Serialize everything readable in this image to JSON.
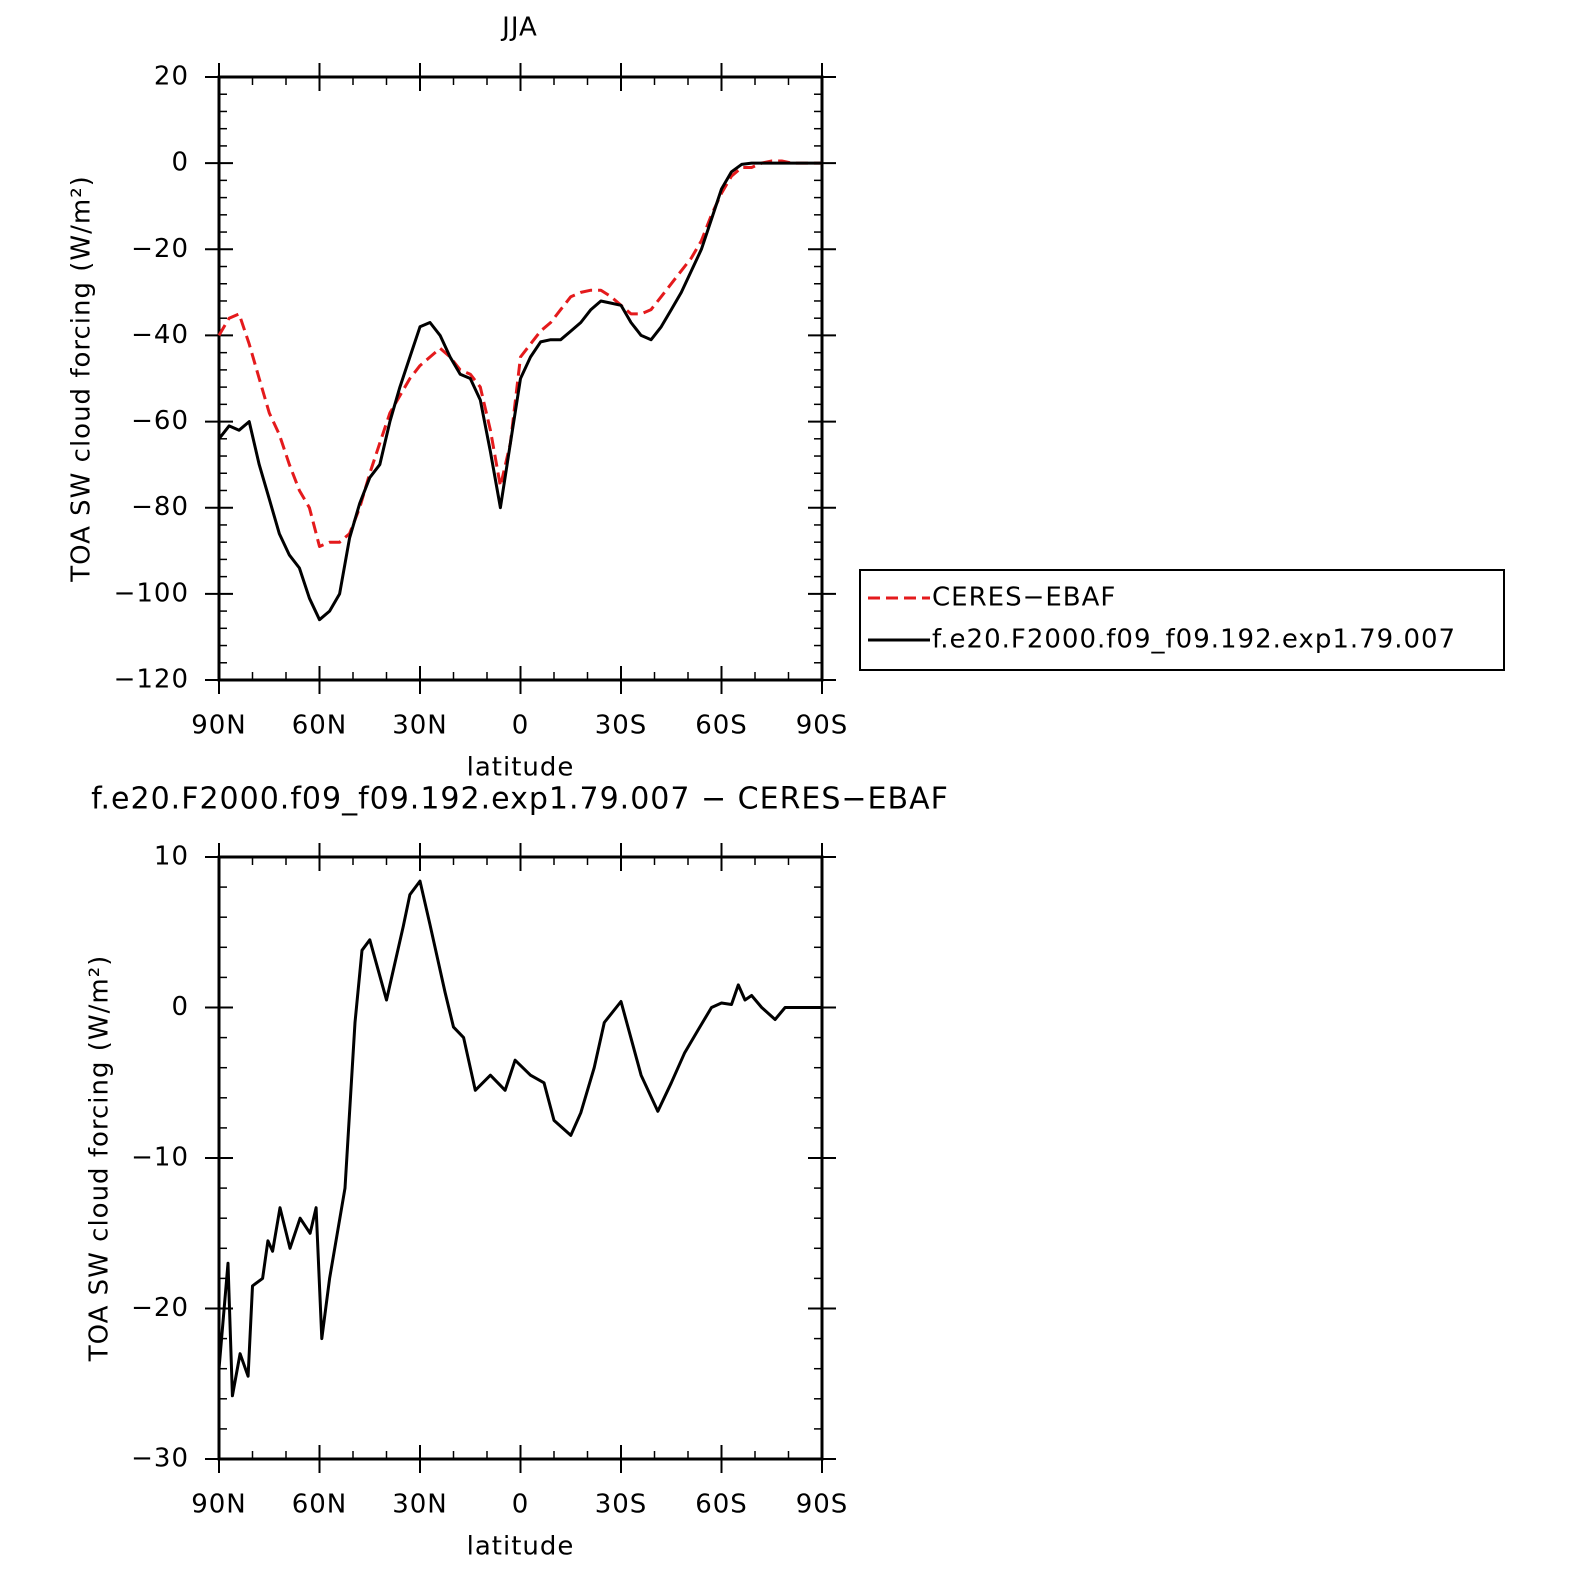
{
  "chart_data": [
    {
      "type": "line",
      "title": "JJA",
      "x_label": "latitude",
      "y_label": "TOA SW cloud forcing (W/m²)",
      "xlim": [
        90,
        -90
      ],
      "xticks": [
        {
          "value": 90,
          "label": "90N"
        },
        {
          "value": 60,
          "label": "60N"
        },
        {
          "value": 30,
          "label": "30N"
        },
        0,
        {
          "value": -30,
          "label": "30S"
        },
        {
          "value": -60,
          "label": "60S"
        },
        {
          "value": -90,
          "label": "90S"
        }
      ],
      "ylim": [
        -120,
        20
      ],
      "yticks": [
        {
          "value": -120,
          "label": "−120"
        },
        {
          "value": -100,
          "label": "−100"
        },
        {
          "value": -80,
          "label": "−80"
        },
        {
          "value": -60,
          "label": "−60"
        },
        {
          "value": -40,
          "label": "−40"
        },
        {
          "value": -20,
          "label": "−20"
        },
        0,
        20
      ],
      "legend": "right",
      "x": [
        90,
        87,
        84,
        81,
        78,
        75,
        72,
        69,
        66,
        63,
        60,
        57,
        54,
        51,
        48,
        45,
        42,
        39,
        36,
        33,
        30,
        27,
        24,
        21,
        18,
        15,
        12,
        9,
        6,
        3,
        0,
        -3,
        -6,
        -9,
        -12,
        -15,
        -18,
        -21,
        -24,
        -27,
        -30,
        -33,
        -36,
        -39,
        -42,
        -45,
        -48,
        -51,
        -54,
        -57,
        -60,
        -63,
        -66,
        -69,
        -72,
        -75,
        -78,
        -81,
        -84,
        -87,
        -90
      ],
      "series": [
        {
          "name": "CERES−EBAF",
          "color": "#e41a1c",
          "dash": true,
          "values": [
            -40,
            -36,
            -35,
            -42,
            -50,
            -58,
            -63,
            -70,
            -76,
            -80,
            -89,
            -88,
            -88,
            -86,
            -80,
            -72,
            -65,
            -58,
            -54,
            -50,
            -47,
            -45,
            -43,
            -45,
            -48,
            -49,
            -52,
            -62,
            -75,
            -65,
            -45,
            -42,
            -39,
            -37,
            -34,
            -31,
            -30,
            -29.5,
            -29.5,
            -31,
            -33,
            -35,
            -35,
            -34,
            -31,
            -28,
            -25,
            -22,
            -18,
            -12,
            -7,
            -3,
            -1,
            -1,
            0,
            0.5,
            0.5,
            0,
            0,
            0,
            0
          ]
        },
        {
          "name": "f.e20.F2000.f09_f09.192.exp1.79.007",
          "color": "#000000",
          "dash": false,
          "values": [
            -64,
            -61,
            -62,
            -60,
            -70,
            -78,
            -86,
            -91,
            -94,
            -101,
            -106,
            -104,
            -100,
            -87,
            -79,
            -73,
            -70,
            -60,
            -52,
            -45,
            -38,
            -37,
            -40,
            -45,
            -49,
            -50,
            -55,
            -67,
            -80,
            -65,
            -50,
            -45,
            -41.5,
            -41,
            -41,
            -39,
            -37,
            -34,
            -32,
            -32.5,
            -33,
            -37,
            -40,
            -41,
            -38,
            -34,
            -30,
            -25,
            -20,
            -13,
            -6,
            -2,
            -0.3,
            0,
            0,
            0,
            0,
            0,
            0,
            0,
            0
          ]
        }
      ]
    },
    {
      "type": "line",
      "title": "f.e20.F2000.f09_f09.192.exp1.79.007 − CERES−EBAF",
      "x_label": "latitude",
      "y_label": "TOA SW cloud forcing (W/m²)",
      "xlim": [
        90,
        -90
      ],
      "xticks": [
        {
          "value": 90,
          "label": "90N"
        },
        {
          "value": 60,
          "label": "60N"
        },
        {
          "value": 30,
          "label": "30N"
        },
        0,
        {
          "value": -30,
          "label": "30S"
        },
        {
          "value": -60,
          "label": "60S"
        },
        {
          "value": -90,
          "label": "90S"
        }
      ],
      "ylim": [
        -30,
        10
      ],
      "yticks": [
        {
          "value": -30,
          "label": "−30"
        },
        {
          "value": -20,
          "label": "−20"
        },
        {
          "value": -10,
          "label": "−10"
        },
        0,
        10
      ],
      "x": [
        90,
        87.3,
        86,
        83.7,
        81.3,
        80,
        77,
        75.4,
        74,
        71.8,
        68.8,
        65.8,
        62.8,
        61,
        59.3,
        57,
        52.4,
        49.4,
        47.3,
        45,
        40,
        35,
        33,
        30,
        27,
        22.5,
        20,
        17,
        13.5,
        9,
        4.6,
        1.6,
        -3,
        -7,
        -10,
        -15,
        -18,
        -22,
        -25,
        -30,
        -36,
        -41,
        -45,
        -49,
        -53,
        -57,
        -60,
        -63,
        -65,
        -67,
        -69,
        -72,
        -76,
        -79,
        -85,
        -90
      ],
      "series": [
        {
          "color": "#000000",
          "dash": false,
          "values": [
            -24,
            -17,
            -25.8,
            -23,
            -24.5,
            -18.5,
            -18,
            -15.5,
            -16.2,
            -13.3,
            -16,
            -14,
            -15,
            -13.3,
            -22,
            -18,
            -12,
            -1,
            3.8,
            4.5,
            0.5,
            5.4,
            7.5,
            8.4,
            5.5,
            1,
            -1.3,
            -2,
            -5.5,
            -4.5,
            -5.5,
            -3.5,
            -4.5,
            -5,
            -7.5,
            -8.5,
            -7,
            -4,
            -1,
            0.4,
            -4.5,
            -6.9,
            -5,
            -3,
            -1.5,
            0,
            0.3,
            0.2,
            1.5,
            0.5,
            0.8,
            0,
            -0.8,
            0,
            0,
            0
          ]
        }
      ]
    }
  ]
}
